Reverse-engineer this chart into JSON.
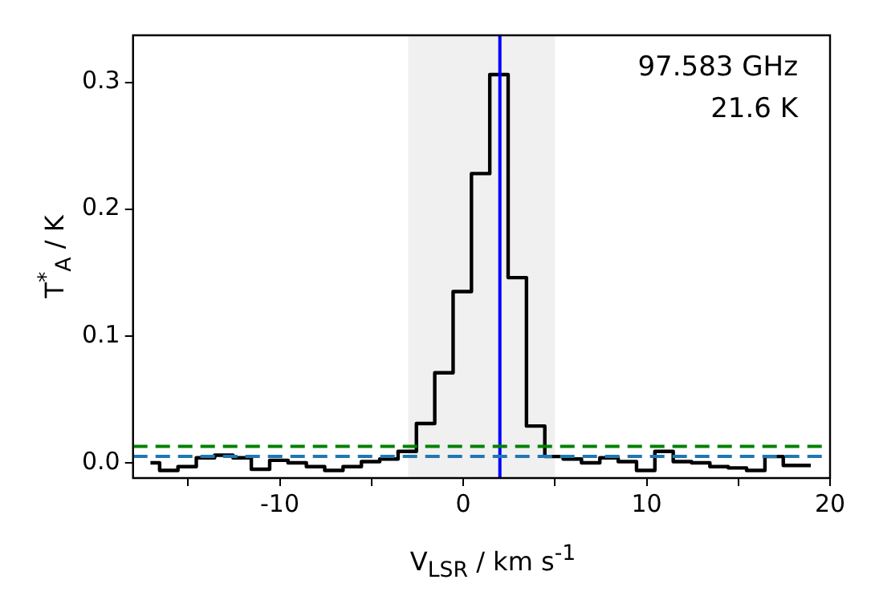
{
  "chart_data": {
    "type": "step",
    "xlabel": "V$_{LSR}$ / km s$^{-1}$",
    "ylabel": "T$^{*}$$_{A}$ / K",
    "x": [
      -17.05,
      -16.05,
      -15.05,
      -14.05,
      -13.05,
      -12.05,
      -11.05,
      -10.05,
      -9.05,
      -8.05,
      -7.05,
      -6.05,
      -5.05,
      -4.05,
      -3.05,
      -2.05,
      -1.05,
      -0.05,
      0.95,
      1.95,
      2.95,
      3.95,
      4.95,
      5.95,
      6.95,
      7.95,
      8.95,
      9.95,
      10.95,
      11.95,
      12.95,
      13.95,
      14.95,
      15.95,
      16.95,
      17.95,
      18.95
    ],
    "series": [
      {
        "color": "#000000",
        "values": [
          0.0,
          -0.006,
          -0.003,
          0.004,
          0.006,
          0.004,
          -0.005,
          0.002,
          0.0,
          -0.003,
          -0.006,
          -0.003,
          0.001,
          0.003,
          0.009,
          0.031,
          0.071,
          0.135,
          0.228,
          0.306,
          0.146,
          0.029,
          0.005,
          0.003,
          0.0,
          0.004,
          0.001,
          -0.006,
          0.009,
          0.001,
          0.0,
          -0.003,
          -0.004,
          -0.006,
          0.005,
          -0.002,
          -0.002
        ]
      }
    ],
    "xlim": [
      -18,
      20
    ],
    "ylim": [
      -0.012,
      0.337
    ],
    "xticks": [
      {
        "value": -15,
        "label": null
      },
      -10,
      {
        "value": -5,
        "label": null
      },
      0,
      {
        "value": 5,
        "label": null
      },
      10,
      {
        "value": 15,
        "label": null
      },
      20
    ],
    "yticks": [
      {
        "value": 0,
        "label": "0.0"
      },
      0.1,
      0.2,
      0.3
    ],
    "bands": [
      {
        "axis": "x",
        "from": -3,
        "to": 5,
        "color": "#f0f0f0"
      }
    ],
    "ref_lines": [
      {
        "axis": "x",
        "value": 2,
        "color": "#0000ff",
        "line_style": "solid"
      },
      {
        "axis": "y",
        "value": 0.013,
        "color": "#008000",
        "line_style": "dashed"
      },
      {
        "axis": "y",
        "value": 0.005,
        "color": "#1f77b4",
        "line_style": "dashed"
      }
    ],
    "annotations": [
      "97.583 GHz",
      "21.6 K"
    ],
    "grid": false,
    "legend": false
  }
}
